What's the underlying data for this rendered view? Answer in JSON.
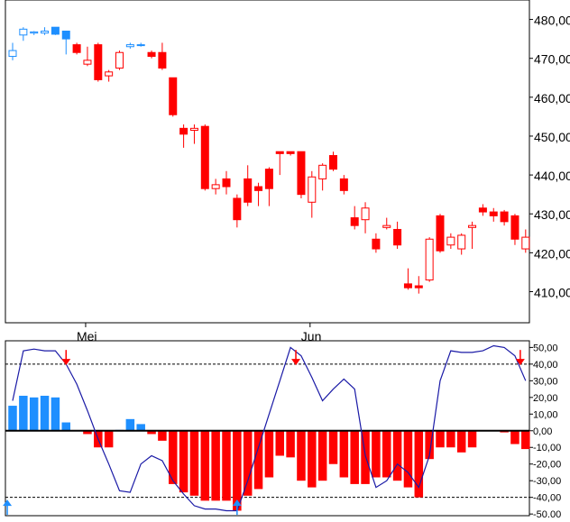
{
  "chart_data": [
    {
      "type": "candlestick",
      "title": "",
      "y_ticks": [
        "480,00",
        "470,00",
        "460,00",
        "450,00",
        "440,00",
        "430,00",
        "420,00",
        "410,00"
      ],
      "y_tick_values": [
        480,
        470,
        460,
        450,
        440,
        430,
        420,
        410
      ],
      "ylim": [
        402,
        485
      ],
      "x_labels": [
        {
          "label": "Mei",
          "index": 7
        },
        {
          "label": "Jun",
          "index": 28
        }
      ],
      "colors": {
        "up_red": "#ff0000",
        "down_red": "#ff0000",
        "up_blue": "#1e8fff",
        "down_blue": "#1e8fff"
      },
      "candles": [
        {
          "o": 470.5,
          "h": 474,
          "l": 469.5,
          "c": 472,
          "color": "blue"
        },
        {
          "o": 476,
          "h": 478,
          "l": 474.5,
          "c": 477.5,
          "color": "blue"
        },
        {
          "o": 476.5,
          "h": 477,
          "l": 476,
          "c": 476.8,
          "color": "blue"
        },
        {
          "o": 476.5,
          "h": 478,
          "l": 476,
          "c": 477,
          "color": "blue"
        },
        {
          "o": 478,
          "h": 478,
          "l": 476,
          "c": 476.2,
          "color": "blue"
        },
        {
          "o": 477,
          "h": 477,
          "l": 471,
          "c": 475,
          "color": "blue"
        },
        {
          "o": 473.5,
          "h": 474,
          "l": 471,
          "c": 471.5,
          "color": "red"
        },
        {
          "o": 468.5,
          "h": 473,
          "l": 468,
          "c": 469.5,
          "color": "red"
        },
        {
          "o": 473.5,
          "h": 474,
          "l": 464,
          "c": 464.5,
          "color": "red"
        },
        {
          "o": 465.5,
          "h": 467,
          "l": 464,
          "c": 466.5,
          "color": "red"
        },
        {
          "o": 467.5,
          "h": 472,
          "l": 467,
          "c": 471.5,
          "color": "red"
        },
        {
          "o": 473,
          "h": 474,
          "l": 472.5,
          "c": 473.5,
          "color": "blue"
        },
        {
          "o": 473.5,
          "h": 474,
          "l": 473,
          "c": 473.5,
          "color": "blue"
        },
        {
          "o": 471.5,
          "h": 472,
          "l": 470,
          "c": 470.5,
          "color": "red"
        },
        {
          "o": 471.5,
          "h": 474,
          "l": 467,
          "c": 467.5,
          "color": "red"
        },
        {
          "o": 465,
          "h": 465,
          "l": 455,
          "c": 455.5,
          "color": "red"
        },
        {
          "o": 452,
          "h": 453,
          "l": 447,
          "c": 450.5,
          "color": "red"
        },
        {
          "o": 451.5,
          "h": 453,
          "l": 448,
          "c": 452,
          "color": "red"
        },
        {
          "o": 452.5,
          "h": 453,
          "l": 436,
          "c": 436.5,
          "color": "red"
        },
        {
          "o": 436.5,
          "h": 439,
          "l": 435,
          "c": 437.5,
          "color": "red"
        },
        {
          "o": 439,
          "h": 441,
          "l": 435,
          "c": 437,
          "color": "red"
        },
        {
          "o": 434,
          "h": 435,
          "l": 426.5,
          "c": 428.5,
          "color": "red"
        },
        {
          "o": 439,
          "h": 442.5,
          "l": 432,
          "c": 433,
          "color": "red"
        },
        {
          "o": 437,
          "h": 438,
          "l": 432,
          "c": 436,
          "color": "red"
        },
        {
          "o": 441.5,
          "h": 442,
          "l": 432,
          "c": 436.5,
          "color": "red"
        },
        {
          "o": 446,
          "h": 446,
          "l": 440,
          "c": 445.5,
          "color": "red"
        },
        {
          "o": 446,
          "h": 446,
          "l": 445,
          "c": 445.5,
          "color": "red"
        },
        {
          "o": 446,
          "h": 446,
          "l": 434,
          "c": 435,
          "color": "red"
        },
        {
          "o": 433,
          "h": 441,
          "l": 429,
          "c": 439.5,
          "color": "red"
        },
        {
          "o": 439,
          "h": 443,
          "l": 436,
          "c": 442.5,
          "color": "red"
        },
        {
          "o": 445,
          "h": 446,
          "l": 441,
          "c": 441.5,
          "color": "red"
        },
        {
          "o": 439,
          "h": 440,
          "l": 435,
          "c": 436,
          "color": "red"
        },
        {
          "o": 429,
          "h": 432,
          "l": 426,
          "c": 427,
          "color": "red"
        },
        {
          "o": 428.5,
          "h": 433,
          "l": 425,
          "c": 431.5,
          "color": "red"
        },
        {
          "o": 423.5,
          "h": 425,
          "l": 420,
          "c": 421,
          "color": "red"
        },
        {
          "o": 426.5,
          "h": 429,
          "l": 426,
          "c": 427,
          "color": "red"
        },
        {
          "o": 426,
          "h": 428,
          "l": 421,
          "c": 422,
          "color": "red"
        },
        {
          "o": 412,
          "h": 416,
          "l": 410.5,
          "c": 411,
          "color": "red"
        },
        {
          "o": 411.5,
          "h": 414,
          "l": 409.5,
          "c": 411,
          "color": "red"
        },
        {
          "o": 413,
          "h": 424,
          "l": 412.5,
          "c": 423.5,
          "color": "red"
        },
        {
          "o": 429.5,
          "h": 430,
          "l": 420,
          "c": 420.5,
          "color": "red"
        },
        {
          "o": 422,
          "h": 425,
          "l": 421,
          "c": 424,
          "color": "red"
        },
        {
          "o": 421,
          "h": 425,
          "l": 419.5,
          "c": 424.5,
          "color": "red"
        },
        {
          "o": 426.5,
          "h": 428,
          "l": 421,
          "c": 427,
          "color": "red"
        },
        {
          "o": 431.5,
          "h": 432.5,
          "l": 429.5,
          "c": 430.5,
          "color": "red"
        },
        {
          "o": 430.5,
          "h": 431.5,
          "l": 428,
          "c": 429.5,
          "color": "red"
        },
        {
          "o": 430.5,
          "h": 431,
          "l": 427,
          "c": 428,
          "color": "red"
        },
        {
          "o": 429.5,
          "h": 430,
          "l": 422,
          "c": 423.5,
          "color": "red"
        },
        {
          "o": 421,
          "h": 426,
          "l": 420,
          "c": 424,
          "color": "red"
        }
      ]
    },
    {
      "type": "bar+line",
      "title": "",
      "y_ticks": [
        "50,00",
        "40,00",
        "30,00",
        "20,00",
        "10,00",
        "0,00",
        "-10,00",
        "-20,00",
        "-30,00",
        "-40,00",
        "-50,00"
      ],
      "y_tick_values": [
        50,
        40,
        30,
        20,
        10,
        0,
        -10,
        -20,
        -30,
        -40,
        -50
      ],
      "ylim": [
        -51,
        54
      ],
      "reference_lines": [
        40,
        -40
      ],
      "zero_line": 0,
      "bar_colors": {
        "positive": "#1e8fff",
        "negative": "#ff0000"
      },
      "line_color": "#1a1aa6",
      "bars": [
        {
          "i": 0,
          "v": 15
        },
        {
          "i": 1,
          "v": 21
        },
        {
          "i": 2,
          "v": 20
        },
        {
          "i": 3,
          "v": 21
        },
        {
          "i": 4,
          "v": 20
        },
        {
          "i": 5,
          "v": 5
        },
        {
          "i": 6,
          "v": 0
        },
        {
          "i": 7,
          "v": -2
        },
        {
          "i": 8,
          "v": -10
        },
        {
          "i": 9,
          "v": -10
        },
        {
          "i": 10,
          "v": 0.5
        },
        {
          "i": 11,
          "v": 7
        },
        {
          "i": 12,
          "v": 4
        },
        {
          "i": 13,
          "v": -2
        },
        {
          "i": 14,
          "v": -6
        },
        {
          "i": 15,
          "v": -32
        },
        {
          "i": 16,
          "v": -37
        },
        {
          "i": 17,
          "v": -39
        },
        {
          "i": 18,
          "v": -42
        },
        {
          "i": 19,
          "v": -42
        },
        {
          "i": 20,
          "v": -42
        },
        {
          "i": 21,
          "v": -48
        },
        {
          "i": 22,
          "v": -39
        },
        {
          "i": 23,
          "v": -35
        },
        {
          "i": 24,
          "v": -28
        },
        {
          "i": 25,
          "v": -15
        },
        {
          "i": 26,
          "v": -16
        },
        {
          "i": 27,
          "v": -30
        },
        {
          "i": 28,
          "v": -34
        },
        {
          "i": 29,
          "v": -30
        },
        {
          "i": 30,
          "v": -20
        },
        {
          "i": 31,
          "v": -28
        },
        {
          "i": 32,
          "v": -32
        },
        {
          "i": 33,
          "v": -32
        },
        {
          "i": 34,
          "v": -28
        },
        {
          "i": 35,
          "v": -28
        },
        {
          "i": 36,
          "v": -30
        },
        {
          "i": 37,
          "v": -34
        },
        {
          "i": 38,
          "v": -40
        },
        {
          "i": 39,
          "v": -17
        },
        {
          "i": 40,
          "v": -10
        },
        {
          "i": 41,
          "v": -10
        },
        {
          "i": 42,
          "v": -13
        },
        {
          "i": 43,
          "v": -10
        },
        {
          "i": 44,
          "v": 0
        },
        {
          "i": 45,
          "v": 0
        },
        {
          "i": 46,
          "v": -1
        },
        {
          "i": 47,
          "v": -8
        },
        {
          "i": 48,
          "v": -11
        }
      ],
      "line": [
        18,
        48,
        49,
        48,
        48,
        40,
        28,
        12,
        -5,
        -20,
        -36,
        -37,
        -20,
        -15,
        -18,
        -30,
        -38,
        -45,
        -47,
        -47,
        -48,
        -48,
        -30,
        -10,
        10,
        30,
        50,
        45,
        32,
        18,
        25,
        31,
        25,
        -15,
        -34,
        -30,
        -20,
        -25,
        -34,
        -15,
        30,
        48,
        47,
        47,
        48,
        51,
        50,
        45,
        30
      ],
      "signals": [
        {
          "i": -0.5,
          "kind": "up",
          "v": -44
        },
        {
          "i": 5,
          "kind": "down",
          "v": 42
        },
        {
          "i": 21,
          "kind": "up",
          "v": -44
        },
        {
          "i": 26.5,
          "kind": "down",
          "v": 42
        },
        {
          "i": 47.5,
          "kind": "down",
          "v": 42
        }
      ],
      "signal_colors": {
        "up": "#1e8fff",
        "down": "#ff0000"
      }
    }
  ]
}
